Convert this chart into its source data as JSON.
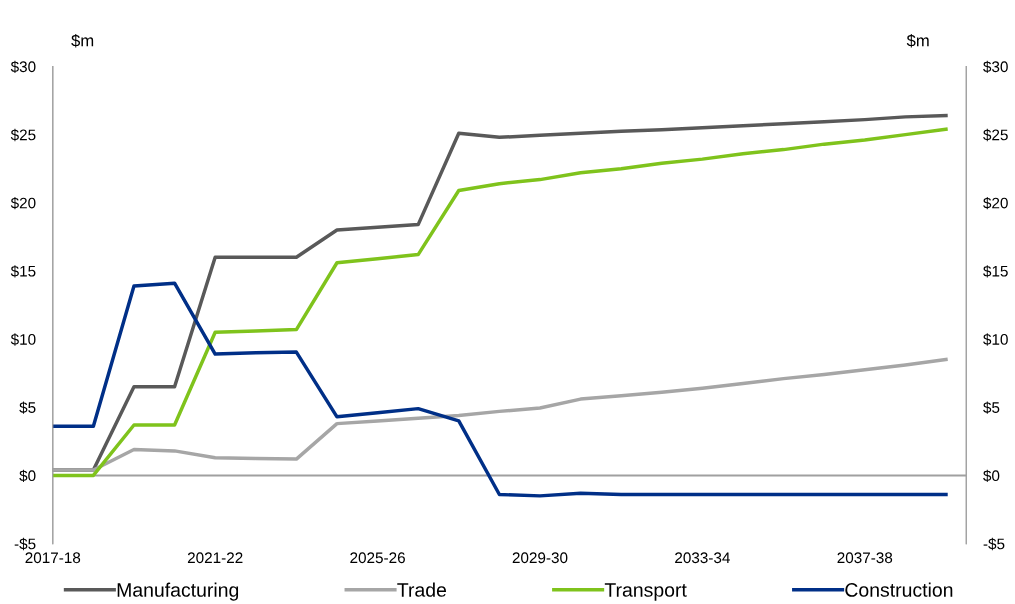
{
  "chart_data": {
    "type": "line",
    "categories": [
      "2017-18",
      null,
      null,
      null,
      "2021-22",
      null,
      null,
      null,
      "2025-26",
      null,
      null,
      null,
      "2029-30",
      null,
      null,
      null,
      "2033-34",
      null,
      null,
      null,
      "2037-38",
      null,
      null
    ],
    "series": [
      {
        "name": "Manufacturing",
        "color": "#595959",
        "values": [
          0.4,
          0.4,
          6.5,
          6.5,
          16.0,
          16.0,
          16.0,
          18.0,
          18.2,
          18.4,
          25.1,
          24.8,
          24.95,
          25.1,
          25.25,
          25.35,
          25.5,
          25.65,
          25.8,
          25.95,
          26.1,
          26.3,
          26.4
        ]
      },
      {
        "name": "Trade",
        "color": "#a6a6a6",
        "values": [
          0.4,
          0.4,
          1.9,
          1.8,
          1.3,
          1.25,
          1.2,
          3.8,
          4.0,
          4.2,
          4.4,
          4.7,
          4.95,
          5.6,
          5.85,
          6.1,
          6.4,
          6.75,
          7.1,
          7.4,
          7.75,
          8.1,
          8.5
        ]
      },
      {
        "name": "Transport",
        "color": "#7fc31c",
        "values": [
          0.0,
          0.0,
          3.7,
          3.7,
          10.5,
          10.6,
          10.7,
          15.6,
          15.9,
          16.2,
          20.9,
          21.4,
          21.7,
          22.2,
          22.5,
          22.9,
          23.2,
          23.6,
          23.9,
          24.3,
          24.6,
          25.0,
          25.4
        ]
      },
      {
        "name": "Construction",
        "color": "#002f87",
        "values": [
          3.6,
          3.6,
          13.9,
          14.1,
          8.9,
          9.0,
          9.05,
          4.3,
          4.6,
          4.9,
          4.0,
          -1.4,
          -1.5,
          -1.3,
          -1.4,
          -1.4,
          -1.4,
          -1.4,
          -1.4,
          -1.4,
          -1.4,
          -1.4,
          -1.4
        ]
      }
    ],
    "ylabel": "$m",
    "y2label": "$m",
    "ylim": [
      -5,
      30
    ],
    "yticks": [
      {
        "value": -5,
        "label": "-$5"
      },
      {
        "value": 0,
        "label": "$0"
      },
      {
        "value": 5,
        "label": "$5"
      },
      {
        "value": 10,
        "label": "$10"
      },
      {
        "value": 15,
        "label": "$15"
      },
      {
        "value": 20,
        "label": "$20"
      },
      {
        "value": 25,
        "label": "$25"
      },
      {
        "value": 30,
        "label": "$30"
      }
    ],
    "y2lim": [
      -5,
      30
    ],
    "y2ticks": [
      {
        "value": -5,
        "label": "-$5"
      },
      {
        "value": 0,
        "label": "$0"
      },
      {
        "value": 5,
        "label": "$5"
      },
      {
        "value": 10,
        "label": "$10"
      },
      {
        "value": 15,
        "label": "$15"
      },
      {
        "value": 20,
        "label": "$20"
      },
      {
        "value": 25,
        "label": "$25"
      },
      {
        "value": 30,
        "label": "$30"
      }
    ],
    "ref_lines": [
      {
        "axis": "y",
        "value": 0,
        "color": "#a0a0a0"
      }
    ],
    "grid": false,
    "legend": "bottom",
    "marker": "none",
    "line_style": "solid"
  }
}
